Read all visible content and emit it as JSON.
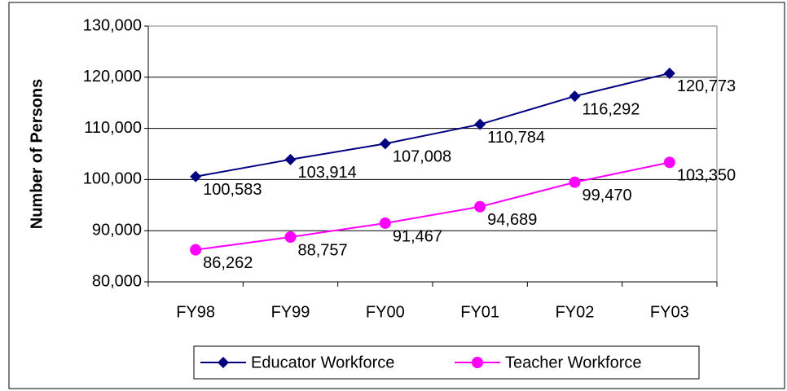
{
  "chart_data": {
    "type": "line",
    "y_axis_label": "Number of Persons",
    "categories": [
      "FY98",
      "FY99",
      "FY00",
      "FY01",
      "FY02",
      "FY03"
    ],
    "series": [
      {
        "name": "Educator Workforce",
        "color": "#000080",
        "marker": "diamond",
        "values": [
          100583,
          103914,
          107008,
          110784,
          116292,
          120773
        ],
        "value_labels": [
          "100,583",
          "103,914",
          "107,008",
          "110,784",
          "116,292",
          "120,773"
        ]
      },
      {
        "name": "Teacher Workforce",
        "color": "#ff00ff",
        "marker": "circle",
        "values": [
          86262,
          88757,
          91467,
          94689,
          99470,
          103350
        ],
        "value_labels": [
          "86,262",
          "88,757",
          "91,467",
          "94,689",
          "99,470",
          "103,350"
        ]
      }
    ],
    "ylim": [
      80000,
      130000
    ],
    "yticks": [
      {
        "value": 80000,
        "label": "80,000"
      },
      {
        "value": 90000,
        "label": "90,000"
      },
      {
        "value": 100000,
        "label": "100,000"
      },
      {
        "value": 110000,
        "label": "110,000"
      },
      {
        "value": 120000,
        "label": "120,000"
      },
      {
        "value": 130000,
        "label": "130,000"
      }
    ],
    "grid": true,
    "legend": "bottom"
  }
}
